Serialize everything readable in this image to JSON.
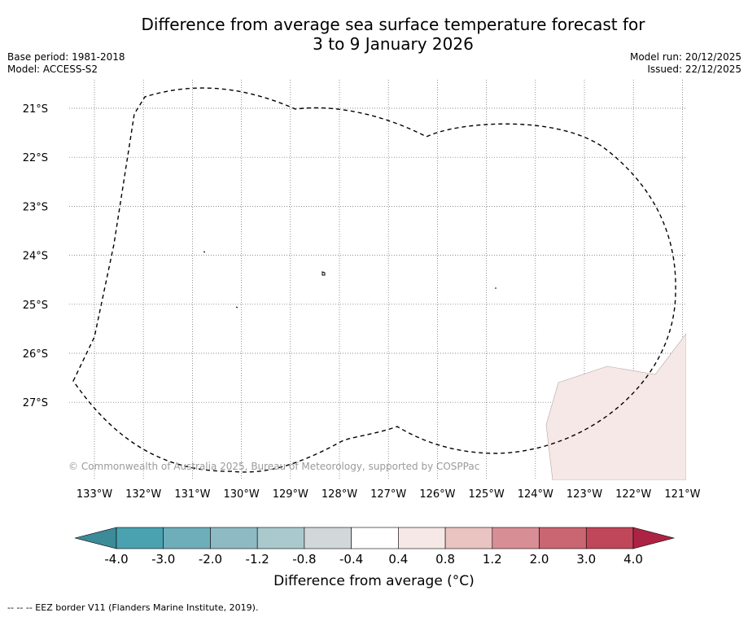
{
  "title_line1": "Difference from average sea surface temperature forecast for",
  "title_line2": "3 to 9 January 2026",
  "meta_left": {
    "base_period": "Base period: 1981-2018",
    "model": "Model: ACCESS-S2"
  },
  "meta_right": {
    "model_run": "Model run: 20/12/2025",
    "issued": "Issued: 22/12/2025"
  },
  "map": {
    "lon_labels": [
      "133°W",
      "132°W",
      "131°W",
      "130°W",
      "129°W",
      "128°W",
      "127°W",
      "126°W",
      "125°W",
      "124°W",
      "123°W",
      "122°W",
      "121°W"
    ],
    "lat_labels": [
      "21°S",
      "22°S",
      "23°S",
      "24°S",
      "25°S",
      "26°S",
      "27°S"
    ],
    "copyright": "© Commonwealth of Australia 2025, Bureau of Meteorology, supported by COSPPac"
  },
  "colorbar": {
    "ticks": [
      "-4.0",
      "-3.0",
      "-2.0",
      "-1.2",
      "-0.8",
      "-0.4",
      "0.4",
      "0.8",
      "1.2",
      "2.0",
      "3.0",
      "4.0"
    ],
    "colors": [
      "#3d8a98",
      "#4aa2b1",
      "#6eaebb",
      "#8ebac4",
      "#a9c9cd",
      "#d2d8da",
      "#ffffff",
      "#f5e8e6",
      "#e9c4c1",
      "#d88e95",
      "#c96672",
      "#bf4759",
      "#ad2343"
    ],
    "label": "Difference from average (°C)"
  },
  "footer": "--  --  -- EEZ border V11 (Flanders Marine Institute, 2019)."
}
